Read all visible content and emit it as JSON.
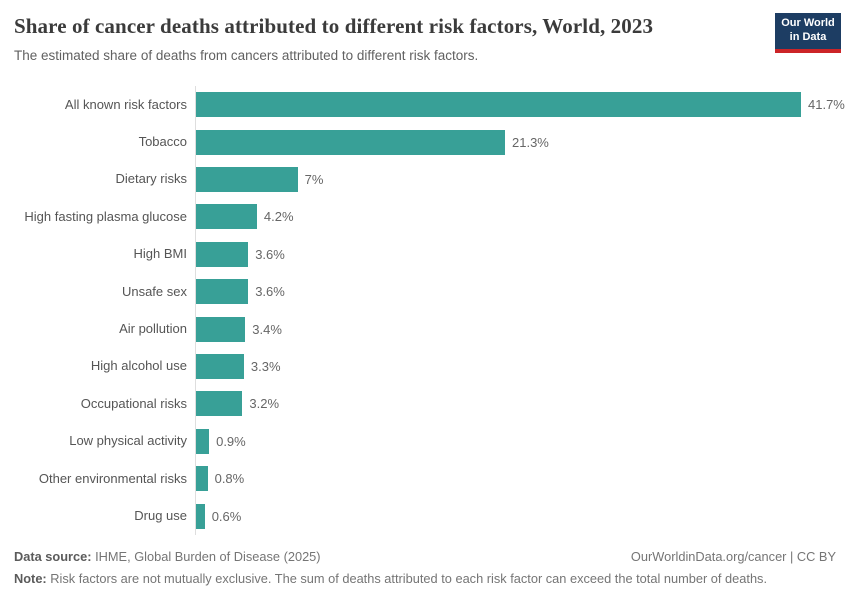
{
  "header": {
    "title": "Share of cancer deaths attributed to different risk factors, World, 2023",
    "subtitle": "The estimated share of deaths from cancers attributed to different risk factors.",
    "logo_line1": "Our World",
    "logo_line2": "in Data"
  },
  "chart_data": {
    "type": "bar",
    "orientation": "horizontal",
    "title": "Share of cancer deaths attributed to different risk factors, World, 2023",
    "categories": [
      "All known risk factors",
      "Tobacco",
      "Dietary risks",
      "High fasting plasma glucose",
      "High BMI",
      "Unsafe sex",
      "Air pollution",
      "High alcohol use",
      "Occupational risks",
      "Low physical activity",
      "Other environmental risks",
      "Drug use"
    ],
    "values": [
      41.7,
      21.3,
      7,
      4.2,
      3.6,
      3.6,
      3.4,
      3.3,
      3.2,
      0.9,
      0.8,
      0.6
    ],
    "value_labels": [
      "41.7%",
      "21.3%",
      "7%",
      "4.2%",
      "3.6%",
      "3.6%",
      "3.4%",
      "3.3%",
      "3.2%",
      "0.9%",
      "0.8%",
      "0.6%"
    ],
    "unit": "%",
    "xlim": [
      0,
      45
    ],
    "grid": false,
    "legend": false,
    "bar_color": "#38a097",
    "axis_line_color": "#dedede"
  },
  "footer": {
    "datasource_label": "Data source:",
    "datasource_text": " IHME, Global Burden of Disease (2025)",
    "link_text": "OurWorldinData.org/cancer | CC BY",
    "note_label": "Note:",
    "note_text": " Risk factors are not mutually exclusive. The sum of deaths attributed to each risk factor can exceed the total number of deaths."
  },
  "colors": {
    "bar": "#38a097",
    "logo_bg": "#1d3d63",
    "logo_accent": "#cc2428",
    "title": "#3b3b3b"
  }
}
